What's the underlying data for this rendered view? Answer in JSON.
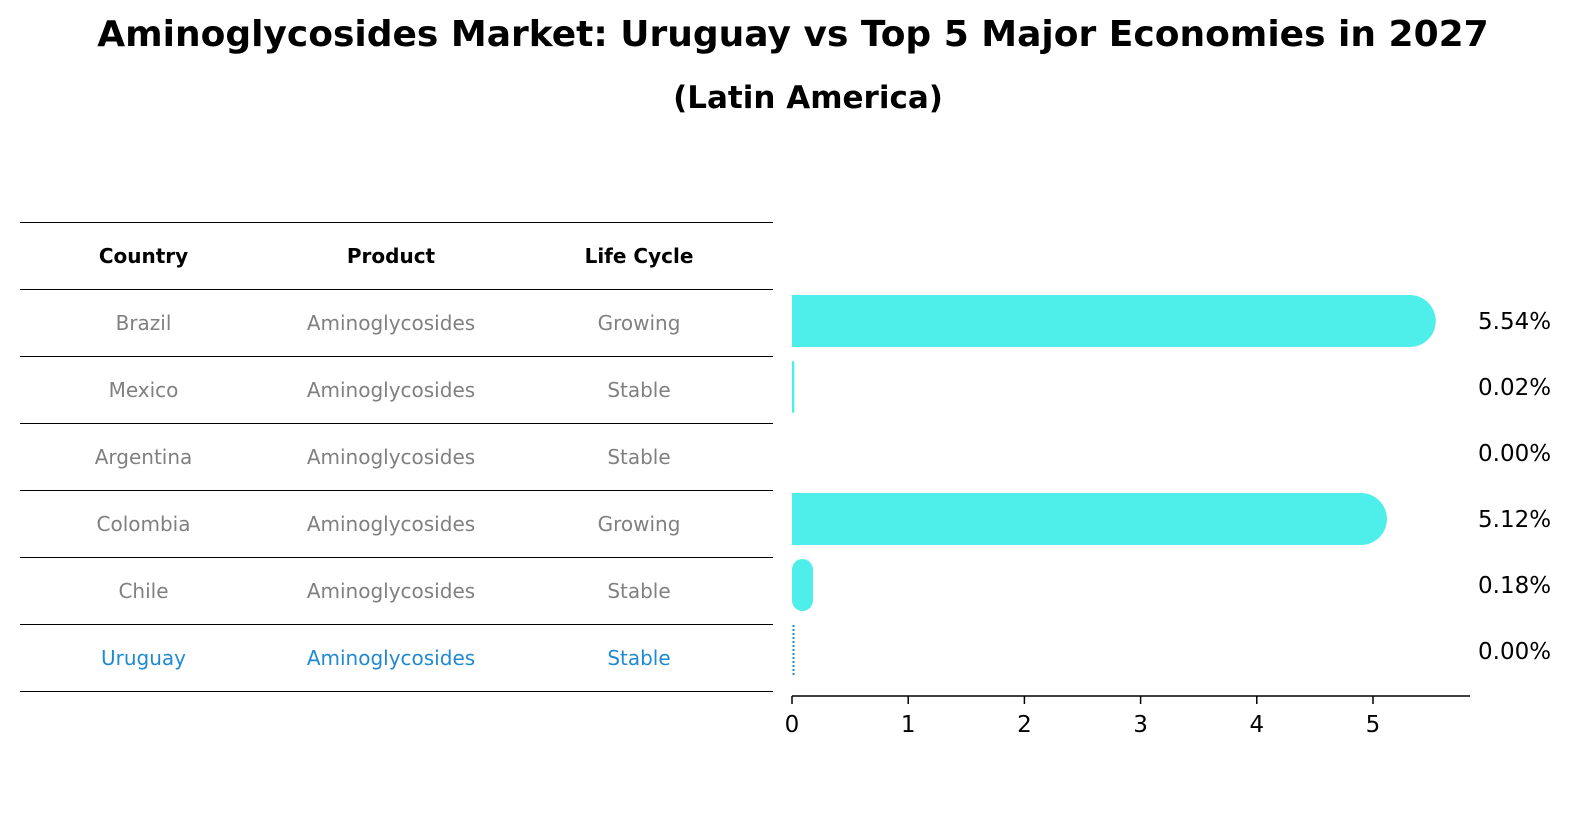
{
  "title": "Aminoglycosides Market: Uruguay vs Top 5 Major Economies in 2027",
  "subtitle": "(Latin America)",
  "table": {
    "headers": [
      "Country",
      "Product",
      "Life Cycle"
    ],
    "rows": [
      [
        "Brazil",
        "Aminoglycosides",
        "Growing"
      ],
      [
        "Mexico",
        "Aminoglycosides",
        "Stable"
      ],
      [
        "Argentina",
        "Aminoglycosides",
        "Stable"
      ],
      [
        "Colombia",
        "Aminoglycosides",
        "Growing"
      ],
      [
        "Chile",
        "Aminoglycosides",
        "Stable"
      ],
      [
        "Uruguay",
        "Aminoglycosides",
        "Stable"
      ]
    ],
    "highlight_row": 5
  },
  "colors": {
    "bar": "#4eeeea",
    "highlight": "#1f8ad2",
    "muted": "#808080"
  },
  "chart_data": {
    "type": "bar",
    "orientation": "horizontal",
    "categories": [
      "Brazil",
      "Mexico",
      "Argentina",
      "Colombia",
      "Chile",
      "Uruguay"
    ],
    "values": [
      5.54,
      0.02,
      0.0,
      5.12,
      0.18,
      0.0
    ],
    "value_labels": [
      "5.54%",
      "0.02%",
      "0.00%",
      "5.12%",
      "0.18%",
      "0.00%"
    ],
    "xticks": [
      "0",
      "1",
      "2",
      "3",
      "4",
      "5"
    ],
    "xlim": [
      0,
      5.8
    ],
    "grid": false
  }
}
